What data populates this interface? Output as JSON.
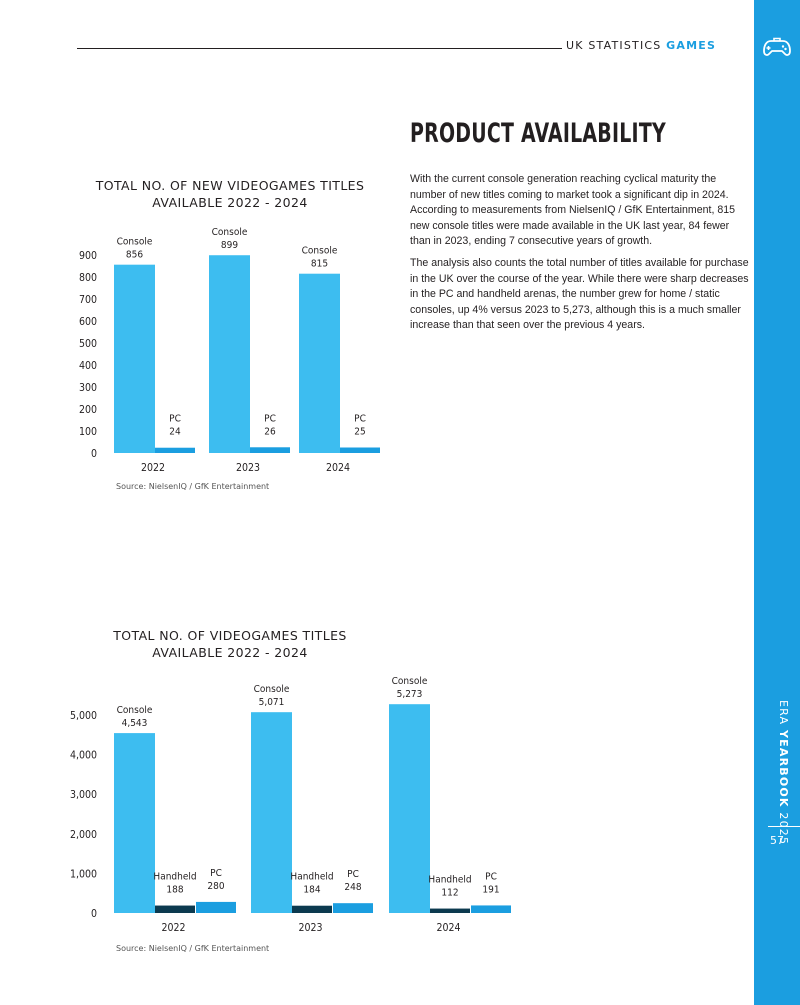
{
  "header": {
    "section": "UK STATISTICS",
    "highlight": "GAMES"
  },
  "sidebar": {
    "era": "ERA",
    "yearbook": "YEARBOOK",
    "year": "2025",
    "page_number": "57",
    "icon": "gamepad-icon",
    "color": "#1b9ee0"
  },
  "article": {
    "title": "PRODUCT AVAILABILITY",
    "paragraphs": [
      "With the current console generation reaching cyclical maturity the number of new titles coming to market took a significant dip in 2024. According to measurements from NielsenIQ / GfK Entertainment, 815 new console titles were made available in the UK last year, 84 fewer than in 2023, ending 7 consecutive years of growth.",
      "The analysis also counts the total number of titles available for purchase in the UK over the course of the year. While there were sharp decreases in the PC and handheld arenas, the number grew for home / static consoles, up 4% versus 2023 to 5,273, although this is a much smaller increase than that seen over the previous 4 years."
    ]
  },
  "chart_data": [
    {
      "type": "bar",
      "title_lines": [
        "TOTAL NO. OF NEW VIDEOGAMES TITLES",
        "AVAILABLE 2022 - 2024"
      ],
      "categories": [
        "2022",
        "2023",
        "2024"
      ],
      "series": [
        {
          "name": "Console",
          "values": [
            856,
            899,
            815
          ],
          "labels": [
            "856",
            "899",
            "815"
          ],
          "color": "#3dbdf0"
        },
        {
          "name": "PC",
          "values": [
            24,
            26,
            25
          ],
          "labels": [
            "24",
            "26",
            "25"
          ],
          "color": "#1b9ee0"
        }
      ],
      "yticks": [
        "0",
        "100",
        "200",
        "300",
        "400",
        "500",
        "600",
        "700",
        "800",
        "900"
      ],
      "ylim": [
        0,
        900
      ],
      "source": "Source: NielsenIQ / GfK Entertainment"
    },
    {
      "type": "bar",
      "title_lines": [
        "TOTAL NO. OF VIDEOGAMES TITLES",
        "AVAILABLE 2022 - 2024"
      ],
      "categories": [
        "2022",
        "2023",
        "2024"
      ],
      "series": [
        {
          "name": "Console",
          "values": [
            4543,
            5071,
            5273
          ],
          "labels": [
            "4,543",
            "5,071",
            "5,273"
          ],
          "color": "#3dbdf0"
        },
        {
          "name": "Handheld",
          "values": [
            188,
            184,
            112
          ],
          "labels": [
            "188",
            "184",
            "112"
          ],
          "color": "#0c3a4f"
        },
        {
          "name": "PC",
          "values": [
            280,
            248,
            191
          ],
          "labels": [
            "280",
            "248",
            "191"
          ],
          "color": "#1b9ee0"
        }
      ],
      "yticks": [
        "0",
        "1,000",
        "2,000",
        "3,000",
        "4,000",
        "5,000"
      ],
      "ylim": [
        0,
        5000
      ],
      "source": "Source: NielsenIQ / GfK Entertainment"
    }
  ]
}
